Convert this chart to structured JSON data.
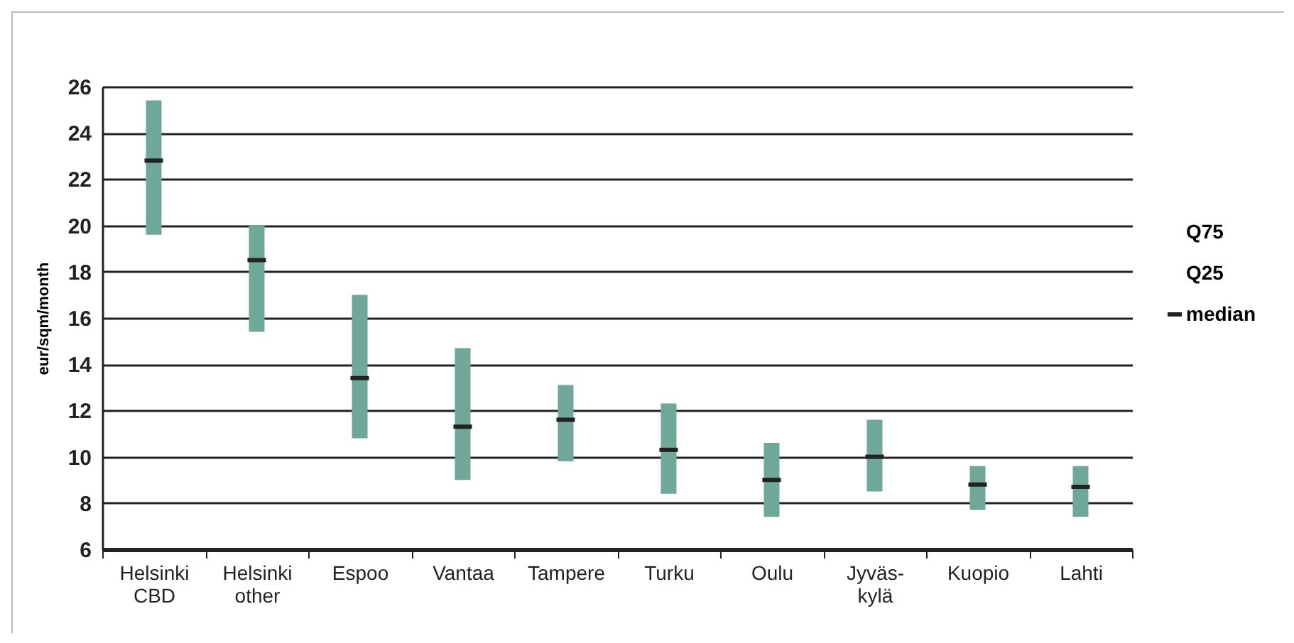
{
  "chart_data": {
    "type": "box",
    "ylabel": "eur/sqm/month",
    "categories": [
      "Helsinki CBD",
      "Helsinki other",
      "Espoo",
      "Vantaa",
      "Tampere",
      "Turku",
      "Oulu",
      "Jyväs-kylä",
      "Kuopio",
      "Lahti"
    ],
    "series": [
      {
        "color": "#6fa899",
        "boxes": [
          {
            "low": 19.6,
            "q1": 19.6,
            "median": 22.8,
            "q3": 25.4,
            "high": 25.4
          },
          {
            "low": 15.4,
            "q1": 15.4,
            "median": 18.5,
            "q3": 20.0,
            "high": 20.0
          },
          {
            "low": 10.8,
            "q1": 10.8,
            "median": 13.4,
            "q3": 17.0,
            "high": 17.0
          },
          {
            "low": 9.0,
            "q1": 9.0,
            "median": 11.3,
            "q3": 14.7,
            "high": 14.7
          },
          {
            "low": 9.8,
            "q1": 9.8,
            "median": 11.6,
            "q3": 13.1,
            "high": 13.1
          },
          {
            "low": 8.4,
            "q1": 8.4,
            "median": 10.3,
            "q3": 12.3,
            "high": 12.3
          },
          {
            "low": 7.4,
            "q1": 7.4,
            "median": 9.0,
            "q3": 10.6,
            "high": 10.6
          },
          {
            "low": 8.5,
            "q1": 8.5,
            "median": 10.0,
            "q3": 11.6,
            "high": 11.6
          },
          {
            "low": 7.7,
            "q1": 7.7,
            "median": 8.8,
            "q3": 9.6,
            "high": 9.6
          },
          {
            "low": 7.4,
            "q1": 7.4,
            "median": 8.7,
            "q3": 9.6,
            "high": 9.6
          }
        ]
      }
    ],
    "ylim": [
      6,
      26
    ],
    "yticks": [
      6,
      8,
      10,
      12,
      14,
      16,
      18,
      20,
      22,
      24,
      26
    ],
    "grid": "y",
    "annotations": [
      "Q75",
      "Q25",
      "median"
    ]
  }
}
